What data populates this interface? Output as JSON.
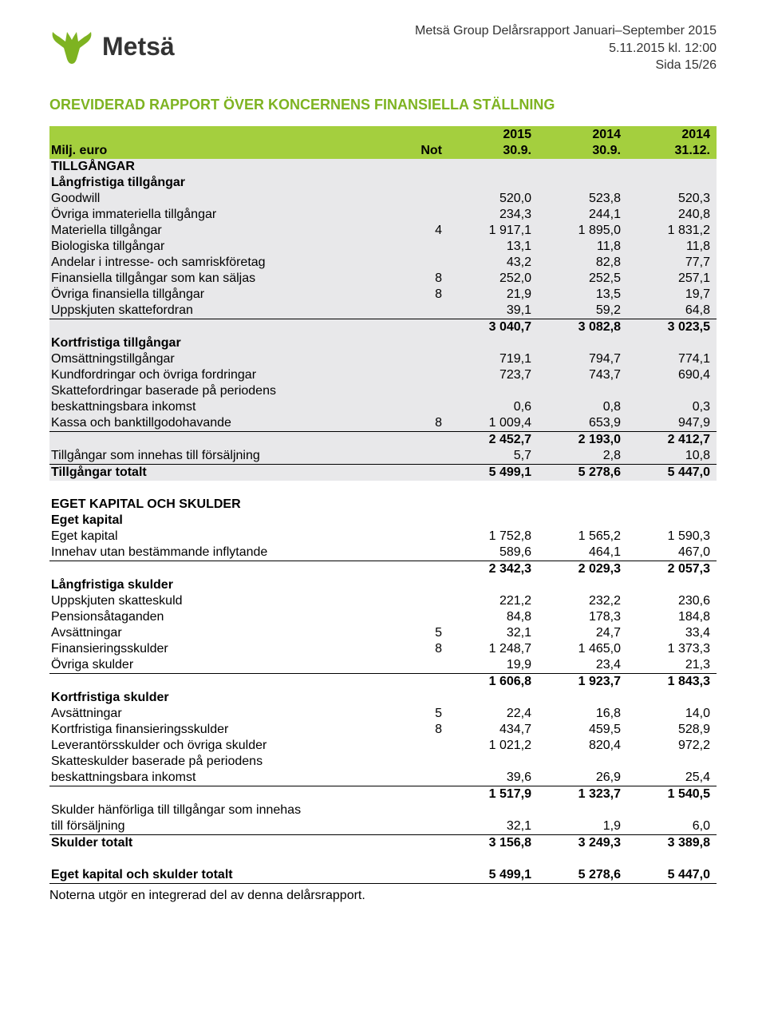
{
  "colors": {
    "accent_green": "#7eb321",
    "band_green": "#a4cf3e",
    "title_green": "#7eb321",
    "shade_gray": "#e8e8ea",
    "text": "#000000",
    "header_text": "#333333"
  },
  "header": {
    "brand": "Metsä",
    "line1": "Metsä Group Delårsrapport Januari–September 2015",
    "line2": "5.11.2015 kl. 12:00",
    "line3": "Sida 15/26"
  },
  "title": "OREVIDERAD RAPPORT ÖVER KONCERNENS FINANSIELLA STÄLLNING",
  "columns": {
    "label_heading": "Milj. euro",
    "not_heading": "Not",
    "periods_top": [
      "2015",
      "2014",
      "2014"
    ],
    "periods_bottom": [
      "30.9.",
      "30.9.",
      "31.12."
    ]
  },
  "rows": [
    {
      "type": "section",
      "label": "TILLGÅNGAR",
      "shade": true
    },
    {
      "type": "subhead",
      "label": "Långfristiga tillgångar",
      "shade": true
    },
    {
      "type": "row",
      "label": "Goodwill",
      "not": "",
      "vals": [
        "520,0",
        "523,8",
        "520,3"
      ],
      "shade": true
    },
    {
      "type": "row",
      "label": "Övriga immateriella tillgångar",
      "not": "",
      "vals": [
        "234,3",
        "244,1",
        "240,8"
      ],
      "shade": true
    },
    {
      "type": "row",
      "label": "Materiella tillgångar",
      "not": "4",
      "vals": [
        "1 917,1",
        "1 895,0",
        "1 831,2"
      ],
      "shade": true
    },
    {
      "type": "row",
      "label": "Biologiska tillgångar",
      "not": "",
      "vals": [
        "13,1",
        "11,8",
        "11,8"
      ],
      "shade": true
    },
    {
      "type": "row",
      "label": "Andelar i intresse- och samriskföretag",
      "not": "",
      "vals": [
        "43,2",
        "82,8",
        "77,7"
      ],
      "shade": true
    },
    {
      "type": "row",
      "label": "Finansiella tillgångar som kan säljas",
      "not": "8",
      "vals": [
        "252,0",
        "252,5",
        "257,1"
      ],
      "shade": true
    },
    {
      "type": "row",
      "label": "Övriga finansiella tillgångar",
      "not": "8",
      "vals": [
        "21,9",
        "13,5",
        "19,7"
      ],
      "shade": true
    },
    {
      "type": "row",
      "label": "Uppskjuten skattefordran",
      "not": "",
      "vals": [
        "39,1",
        "59,2",
        "64,8"
      ],
      "shade": true,
      "underline": true
    },
    {
      "type": "total",
      "label": "",
      "not": "",
      "vals": [
        "3 040,7",
        "3 082,8",
        "3 023,5"
      ],
      "shade": true
    },
    {
      "type": "subhead",
      "label": "Kortfristiga tillgångar",
      "shade": true
    },
    {
      "type": "row",
      "label": "Omsättningstillgångar",
      "not": "",
      "vals": [
        "719,1",
        "794,7",
        "774,1"
      ],
      "shade": true
    },
    {
      "type": "row",
      "label": "Kundfordringar och övriga fordringar",
      "not": "",
      "vals": [
        "723,7",
        "743,7",
        "690,4"
      ],
      "shade": true
    },
    {
      "type": "row2",
      "label1": "Skattefordringar baserade på periodens",
      "label2": "beskattningsbara inkomst",
      "not": "",
      "vals": [
        "0,6",
        "0,8",
        "0,3"
      ],
      "shade": true
    },
    {
      "type": "row",
      "label": "Kassa och banktillgodohavande",
      "not": "8",
      "vals": [
        "1 009,4",
        "653,9",
        "947,9"
      ],
      "shade": true,
      "underline": true
    },
    {
      "type": "total",
      "label": "",
      "not": "",
      "vals": [
        "2 452,7",
        "2 193,0",
        "2 412,7"
      ],
      "shade": true
    },
    {
      "type": "row",
      "label": "Tillgångar som innehas till försäljning",
      "not": "",
      "vals": [
        "5,7",
        "2,8",
        "10,8"
      ],
      "shade": true,
      "underline": true
    },
    {
      "type": "total",
      "label": "Tillgångar totalt",
      "not": "",
      "vals": [
        "5 499,1",
        "5 278,6",
        "5 447,0"
      ],
      "shade": true
    },
    {
      "type": "spacer"
    },
    {
      "type": "section",
      "label": "EGET KAPITAL OCH SKULDER"
    },
    {
      "type": "subhead",
      "label": "Eget kapital"
    },
    {
      "type": "row",
      "label": "Eget kapital",
      "not": "",
      "vals": [
        "1 752,8",
        "1 565,2",
        "1 590,3"
      ]
    },
    {
      "type": "row",
      "label": "Innehav utan bestämmande inflytande",
      "not": "",
      "vals": [
        "589,6",
        "464,1",
        "467,0"
      ],
      "underline": true
    },
    {
      "type": "total",
      "label": "",
      "not": "",
      "vals": [
        "2 342,3",
        "2 029,3",
        "2 057,3"
      ]
    },
    {
      "type": "subhead",
      "label": "Långfristiga skulder"
    },
    {
      "type": "row",
      "label": "Uppskjuten skatteskuld",
      "not": "",
      "vals": [
        "221,2",
        "232,2",
        "230,6"
      ]
    },
    {
      "type": "row",
      "label": "Pensionsåtaganden",
      "not": "",
      "vals": [
        "84,8",
        "178,3",
        "184,8"
      ]
    },
    {
      "type": "row",
      "label": "Avsättningar",
      "not": "5",
      "vals": [
        "32,1",
        "24,7",
        "33,4"
      ]
    },
    {
      "type": "row",
      "label": "Finansieringsskulder",
      "not": "8",
      "vals": [
        "1 248,7",
        "1 465,0",
        "1 373,3"
      ]
    },
    {
      "type": "row",
      "label": "Övriga skulder",
      "not": "",
      "vals": [
        "19,9",
        "23,4",
        "21,3"
      ],
      "underline": true
    },
    {
      "type": "total",
      "label": "",
      "not": "",
      "vals": [
        "1 606,8",
        "1 923,7",
        "1 843,3"
      ]
    },
    {
      "type": "subhead",
      "label": "Kortfristiga skulder"
    },
    {
      "type": "row",
      "label": "Avsättningar",
      "not": "5",
      "vals": [
        "22,4",
        "16,8",
        "14,0"
      ]
    },
    {
      "type": "row",
      "label": "Kortfristiga finansieringsskulder",
      "not": "8",
      "vals": [
        "434,7",
        "459,5",
        "528,9"
      ]
    },
    {
      "type": "row",
      "label": "Leverantörsskulder och övriga skulder",
      "not": "",
      "vals": [
        "1 021,2",
        "820,4",
        "972,2"
      ]
    },
    {
      "type": "row2",
      "label1": "Skatteskulder baserade på periodens",
      "label2": "beskattningsbara inkomst",
      "not": "",
      "vals": [
        "39,6",
        "26,9",
        "25,4"
      ],
      "underline": true
    },
    {
      "type": "total",
      "label": "",
      "not": "",
      "vals": [
        "1 517,9",
        "1 323,7",
        "1 540,5"
      ]
    },
    {
      "type": "row2",
      "label1": "Skulder hänförliga till tillgångar som innehas",
      "label2": "till försäljning",
      "not": "",
      "vals": [
        "32,1",
        "1,9",
        "6,0"
      ],
      "underline": true
    },
    {
      "type": "total",
      "label": "Skulder totalt",
      "not": "",
      "vals": [
        "3 156,8",
        "3 249,3",
        "3 389,8"
      ]
    },
    {
      "type": "spacer"
    },
    {
      "type": "total",
      "label": "Eget kapital och skulder totalt",
      "not": "",
      "vals": [
        "5 499,1",
        "5 278,6",
        "5 447,0"
      ],
      "underline": true
    }
  ],
  "footnote": "Noterna utgör en integrerad del av denna delårsrapport."
}
